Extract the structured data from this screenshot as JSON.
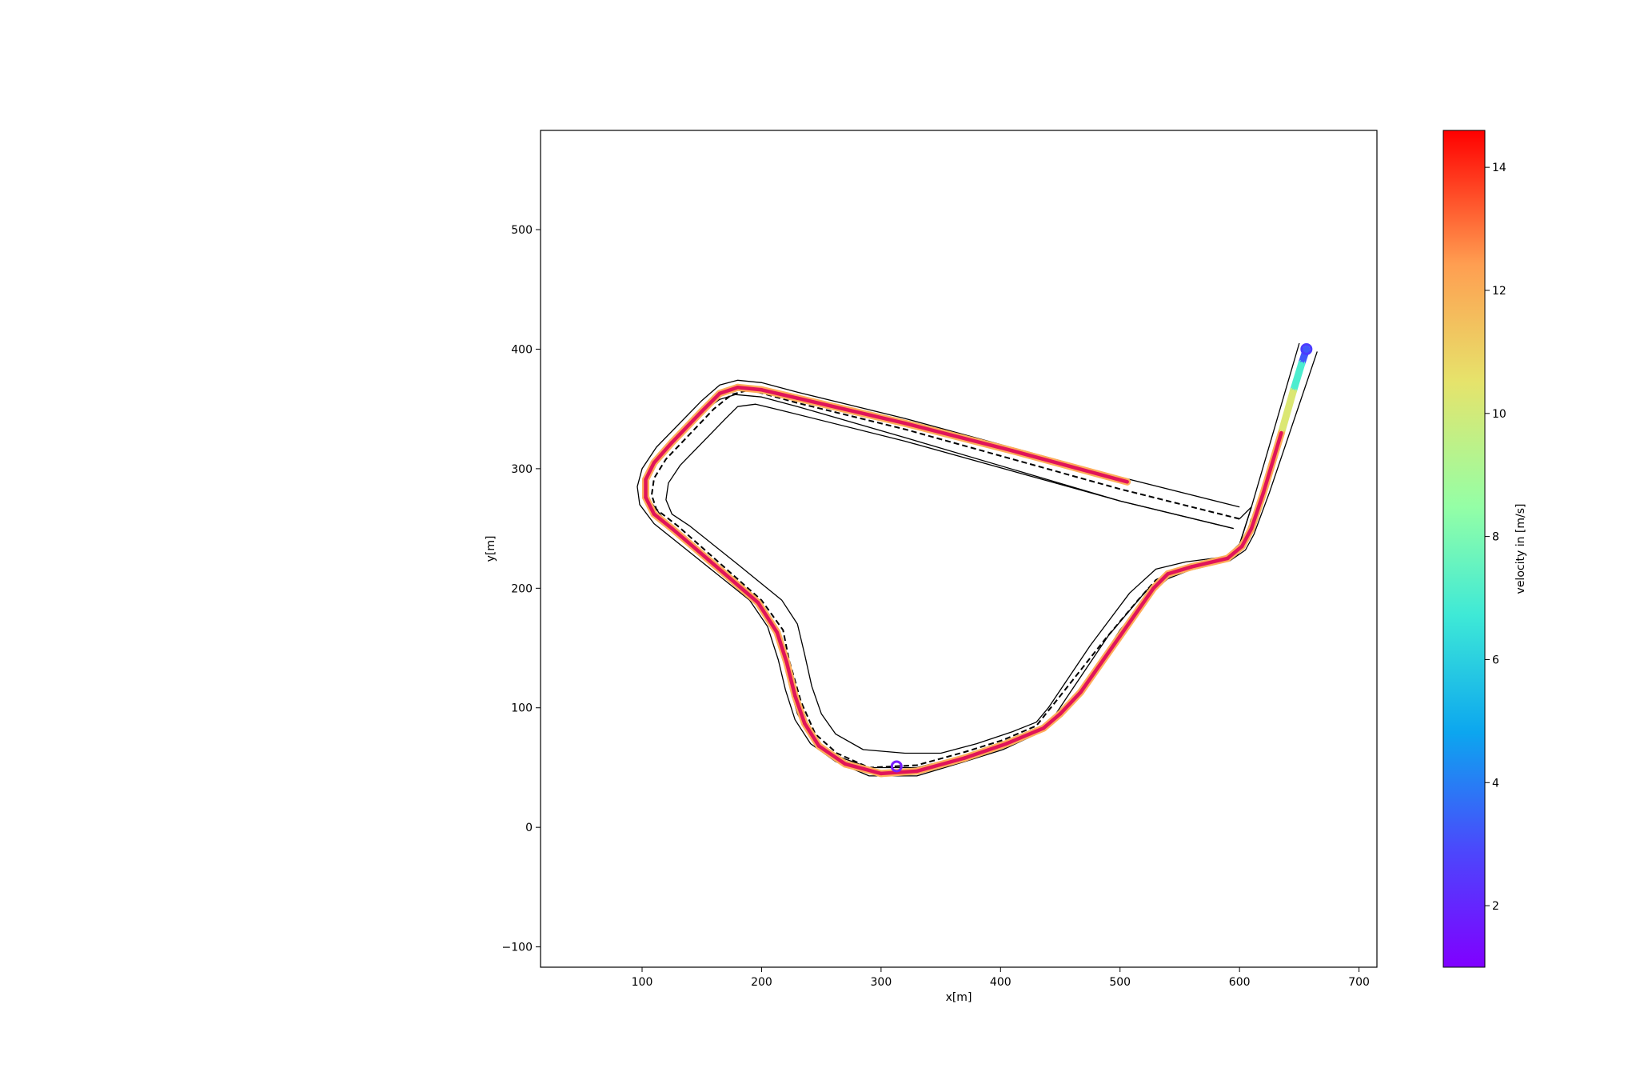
{
  "chart_data": {
    "type": "line",
    "title": "",
    "xlabel": "x[m]",
    "ylabel": "y[m]",
    "xlim": [
      15,
      715
    ],
    "ylim": [
      -117,
      583
    ],
    "x_ticks": [
      100,
      200,
      300,
      400,
      500,
      600,
      700
    ],
    "y_ticks": [
      -100,
      0,
      100,
      200,
      300,
      400,
      500
    ],
    "x_tick_labels": [
      "100",
      "200",
      "300",
      "400",
      "500",
      "600",
      "700"
    ],
    "y_tick_labels": [
      "−100",
      "0",
      "100",
      "200",
      "300",
      "400",
      "500"
    ],
    "grid": false,
    "colorbar": {
      "label": "velocity in [m/s]",
      "range": [
        1,
        14.6
      ],
      "ticks": [
        2,
        4,
        6,
        8,
        10,
        12,
        14
      ],
      "tick_labels": [
        "2",
        "4",
        "6",
        "8",
        "10",
        "12",
        "14"
      ],
      "colormap": "rainbow"
    },
    "centerline": {
      "style": "dashed",
      "color": "#000000",
      "points": [
        [
          600,
          258
        ],
        [
          500,
          283
        ],
        [
          320,
          333
        ],
        [
          230,
          355
        ],
        [
          190,
          366
        ],
        [
          175,
          362
        ],
        [
          160,
          350
        ],
        [
          120,
          308
        ],
        [
          110,
          292
        ],
        [
          108,
          278
        ],
        [
          112,
          266
        ],
        [
          130,
          252
        ],
        [
          200,
          190
        ],
        [
          218,
          165
        ],
        [
          223,
          140
        ],
        [
          233,
          105
        ],
        [
          245,
          78
        ],
        [
          263,
          62
        ],
        [
          290,
          50
        ],
        [
          330,
          52
        ],
        [
          370,
          63
        ],
        [
          402,
          73
        ],
        [
          430,
          85
        ],
        [
          450,
          110
        ],
        [
          488,
          158
        ],
        [
          515,
          190
        ],
        [
          530,
          207
        ],
        [
          550,
          216
        ],
        [
          585,
          222
        ],
        [
          598,
          228
        ],
        [
          606,
          245
        ],
        [
          610,
          258
        ]
      ]
    },
    "boundaries": [
      {
        "name": "outer",
        "points": [
          [
            650,
            405
          ],
          [
            610,
            268
          ],
          [
            600,
            237
          ],
          [
            588,
            226
          ],
          [
            555,
            218
          ],
          [
            538,
            212
          ],
          [
            522,
            198
          ],
          [
            490,
            160
          ],
          [
            455,
            108
          ],
          [
            443,
            90
          ],
          [
            430,
            78
          ],
          [
            402,
            65
          ],
          [
            370,
            55
          ],
          [
            330,
            43
          ],
          [
            290,
            43
          ],
          [
            262,
            55
          ],
          [
            241,
            70
          ],
          [
            228,
            90
          ],
          [
            220,
            115
          ],
          [
            214,
            140
          ],
          [
            205,
            168
          ],
          [
            190,
            190
          ],
          [
            150,
            222
          ],
          [
            110,
            254
          ],
          [
            98,
            270
          ],
          [
            96,
            285
          ],
          [
            100,
            300
          ],
          [
            112,
            318
          ],
          [
            150,
            357
          ],
          [
            165,
            370
          ],
          [
            180,
            374
          ],
          [
            200,
            372
          ],
          [
            230,
            364
          ],
          [
            320,
            342
          ],
          [
            500,
            293
          ],
          [
            600,
            268
          ]
        ]
      },
      {
        "name": "inner",
        "points": [
          [
            665,
            398
          ],
          [
            625,
            280
          ],
          [
            612,
            245
          ],
          [
            605,
            232
          ],
          [
            592,
            223
          ],
          [
            558,
            215
          ],
          [
            540,
            208
          ],
          [
            525,
            195
          ],
          [
            500,
            165
          ],
          [
            470,
            118
          ],
          [
            457,
            100
          ],
          [
            446,
            90
          ],
          [
            430,
            80
          ],
          [
            402,
            70
          ],
          [
            370,
            60
          ],
          [
            330,
            50
          ],
          [
            290,
            50
          ],
          [
            262,
            60
          ],
          [
            241,
            75
          ],
          [
            230,
            95
          ],
          [
            223,
            120
          ],
          [
            217,
            145
          ],
          [
            209,
            172
          ],
          [
            192,
            195
          ],
          [
            152,
            228
          ],
          [
            118,
            258
          ],
          [
            106,
            274
          ],
          [
            104,
            288
          ],
          [
            108,
            302
          ],
          [
            120,
            316
          ],
          [
            155,
            351
          ],
          [
            165,
            358
          ],
          [
            178,
            362
          ],
          [
            200,
            360
          ],
          [
            230,
            352
          ],
          [
            320,
            326
          ],
          [
            500,
            273
          ],
          [
            595,
            250
          ]
        ]
      },
      {
        "name": "inner-loop",
        "points": [
          [
            600,
            258
          ],
          [
            610,
            268
          ],
          [
            598,
            230
          ],
          [
            585,
            226
          ],
          [
            555,
            222
          ],
          [
            530,
            216
          ],
          [
            508,
            196
          ],
          [
            475,
            152
          ],
          [
            440,
            100
          ],
          [
            430,
            88
          ],
          [
            410,
            80
          ],
          [
            380,
            70
          ],
          [
            350,
            62
          ],
          [
            320,
            62
          ],
          [
            285,
            65
          ],
          [
            262,
            78
          ],
          [
            250,
            95
          ],
          [
            242,
            118
          ],
          [
            236,
            145
          ],
          [
            230,
            170
          ],
          [
            217,
            190
          ],
          [
            180,
            220
          ],
          [
            140,
            252
          ],
          [
            125,
            262
          ],
          [
            120,
            274
          ],
          [
            122,
            288
          ],
          [
            132,
            303
          ],
          [
            170,
            342
          ],
          [
            180,
            352
          ],
          [
            195,
            354
          ],
          [
            220,
            348
          ],
          [
            320,
            323
          ],
          [
            500,
            273
          ],
          [
            595,
            250
          ]
        ]
      }
    ],
    "trajectory": {
      "description_source": "velocity-colored path",
      "points": [
        [
          656,
          400
        ],
        [
          652,
          388
        ],
        [
          645,
          365
        ],
        [
          635,
          330
        ],
        [
          620,
          280
        ],
        [
          610,
          250
        ],
        [
          602,
          235
        ],
        [
          590,
          225
        ],
        [
          560,
          218
        ],
        [
          540,
          212
        ],
        [
          528,
          200
        ],
        [
          500,
          160
        ],
        [
          467,
          113
        ],
        [
          450,
          95
        ],
        [
          436,
          83
        ],
        [
          405,
          70
        ],
        [
          370,
          58
        ],
        [
          330,
          47
        ],
        [
          300,
          45
        ],
        [
          270,
          53
        ],
        [
          248,
          68
        ],
        [
          236,
          87
        ],
        [
          228,
          110
        ],
        [
          221,
          138
        ],
        [
          213,
          163
        ],
        [
          197,
          188
        ],
        [
          160,
          220
        ],
        [
          125,
          250
        ],
        [
          110,
          262
        ],
        [
          103,
          276
        ],
        [
          103,
          291
        ],
        [
          110,
          305
        ],
        [
          125,
          322
        ],
        [
          150,
          348
        ],
        [
          165,
          363
        ],
        [
          180,
          368
        ],
        [
          200,
          366
        ],
        [
          230,
          359
        ],
        [
          320,
          338
        ],
        [
          410,
          315
        ],
        [
          506,
          289
        ]
      ],
      "speeds": [
        1.5,
        5,
        9,
        11.5,
        13,
        13.5,
        13,
        12.5,
        13,
        13.5,
        14,
        14,
        14,
        13.5,
        14,
        14.2,
        14.3,
        14,
        13.5,
        13,
        13,
        13.5,
        14,
        14.3,
        14.2,
        13.8,
        13.8,
        14,
        14,
        13.5,
        13.2,
        13.5,
        14,
        14.2,
        14.3,
        14.2,
        14,
        14.2,
        14.4,
        14.5,
        14.5
      ]
    },
    "markers": [
      {
        "name": "start",
        "x": 656,
        "y": 400,
        "color": "#4b3bff"
      },
      {
        "name": "end-cluster",
        "x": 313,
        "y": 51,
        "color": "#7a1fff"
      }
    ]
  }
}
